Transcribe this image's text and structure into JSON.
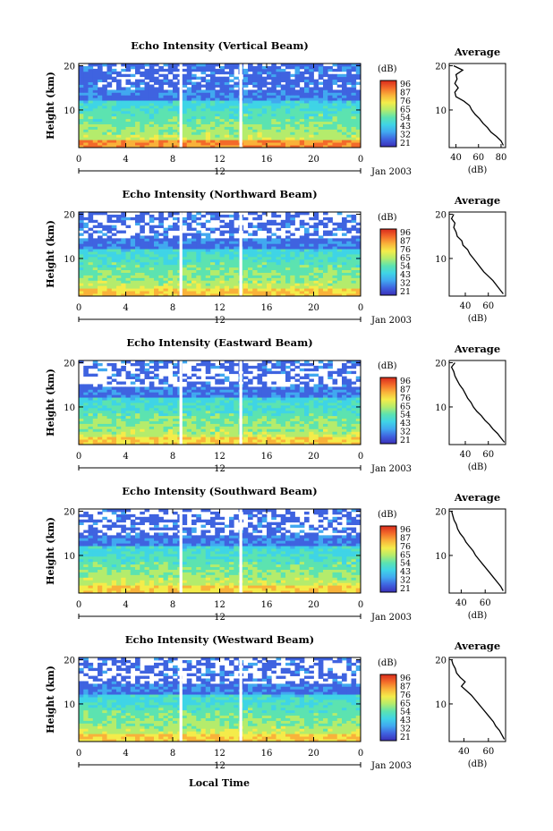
{
  "figure": {
    "xlabel": "Local Time",
    "date_label": "Jan 2003",
    "day_marker_label": "12",
    "ylabel": "Height (km)",
    "colorbar_unit": "(dB)",
    "colorbar_ticks": [
      "96",
      "87",
      "76",
      "65",
      "54",
      "43",
      "32",
      "21"
    ],
    "avg_title": "Average",
    "avg_xlabel": "(dB)"
  },
  "colorscale": [
    "#3a2fb8",
    "#3f63e0",
    "#41a8f0",
    "#3fd4e6",
    "#5ce3b0",
    "#b4ec6c",
    "#f4ec4a",
    "#f9b23a",
    "#f36a2a",
    "#d92a1c"
  ],
  "chart_data": [
    {
      "type": "heatmap",
      "title": "Echo Intensity (Vertical Beam)",
      "x_ticks": [
        "0",
        "4",
        "8",
        "12",
        "16",
        "20",
        "0"
      ],
      "x_range_hours": [
        0,
        24
      ],
      "y_ticks": [
        "20",
        "10"
      ],
      "y_range_km": [
        1.5,
        20.5
      ],
      "intensity_range_db": [
        21,
        96
      ],
      "data_gaps_hours": [
        8.7,
        13.8
      ],
      "average_profile": {
        "x_ticks": [
          "40",
          "60",
          "80"
        ],
        "x_range_db": [
          34,
          84
        ],
        "y_ticks": [
          "20",
          "10"
        ],
        "height_km": [
          20,
          19,
          18,
          17,
          16,
          15,
          14,
          13,
          12,
          11,
          10,
          9,
          8,
          7,
          6,
          5,
          4,
          3,
          2
        ],
        "db": [
          38,
          46,
          40,
          41,
          39,
          42,
          39,
          40,
          47,
          52,
          54,
          57,
          61,
          64,
          68,
          71,
          76,
          80,
          82
        ]
      }
    },
    {
      "type": "heatmap",
      "title": "Echo Intensity (Northward Beam)",
      "x_ticks": [
        "0",
        "4",
        "8",
        "12",
        "16",
        "20",
        "0"
      ],
      "x_range_hours": [
        0,
        24
      ],
      "y_ticks": [
        "20",
        "10"
      ],
      "y_range_km": [
        1.5,
        20.5
      ],
      "intensity_range_db": [
        21,
        96
      ],
      "data_gaps_hours": [
        8.7,
        13.8
      ],
      "average_profile": {
        "x_ticks": [
          "40",
          "60"
        ],
        "x_range_db": [
          26,
          75
        ],
        "y_ticks": [
          "20",
          "10"
        ],
        "height_km": [
          20,
          19,
          18,
          17,
          16,
          15,
          14,
          13,
          12,
          11,
          10,
          9,
          8,
          7,
          6,
          5,
          4,
          3,
          2
        ],
        "db": [
          30,
          28,
          31,
          30,
          32,
          33,
          37,
          38,
          42,
          44,
          47,
          50,
          53,
          56,
          60,
          64,
          67,
          70,
          73
        ]
      }
    },
    {
      "type": "heatmap",
      "title": "Echo Intensity (Eastward Beam)",
      "x_ticks": [
        "0",
        "4",
        "8",
        "12",
        "16",
        "20",
        "0"
      ],
      "x_range_hours": [
        0,
        24
      ],
      "y_ticks": [
        "20",
        "10"
      ],
      "y_range_km": [
        1.5,
        20.5
      ],
      "intensity_range_db": [
        21,
        96
      ],
      "data_gaps_hours": [
        8.7,
        13.8
      ],
      "average_profile": {
        "x_ticks": [
          "40",
          "60"
        ],
        "x_range_db": [
          26,
          75
        ],
        "y_ticks": [
          "20",
          "10"
        ],
        "height_km": [
          20,
          19,
          18,
          17,
          16,
          15,
          14,
          13,
          12,
          11,
          10,
          9,
          8,
          7,
          6,
          5,
          4,
          3,
          2
        ],
        "db": [
          31,
          28,
          30,
          31,
          33,
          35,
          38,
          40,
          42,
          45,
          47,
          50,
          54,
          57,
          61,
          64,
          68,
          71,
          74
        ]
      }
    },
    {
      "type": "heatmap",
      "title": "Echo Intensity (Southward Beam)",
      "x_ticks": [
        "0",
        "4",
        "8",
        "12",
        "16",
        "20",
        "0"
      ],
      "x_range_hours": [
        0,
        24
      ],
      "y_ticks": [
        "20",
        "10"
      ],
      "y_range_km": [
        1.5,
        20.5
      ],
      "intensity_range_db": [
        21,
        96
      ],
      "data_gaps_hours": [
        8.7,
        13.8
      ],
      "average_profile": {
        "x_ticks": [
          "40",
          "60"
        ],
        "x_range_db": [
          30,
          77
        ],
        "y_ticks": [
          "20",
          "10"
        ],
        "height_km": [
          20,
          19,
          18,
          17,
          16,
          15,
          14,
          13,
          12,
          11,
          10,
          9,
          8,
          7,
          6,
          5,
          4,
          3,
          2
        ],
        "db": [
          32,
          33,
          34,
          36,
          37,
          39,
          42,
          44,
          47,
          50,
          52,
          55,
          58,
          61,
          64,
          67,
          70,
          73,
          75
        ]
      }
    },
    {
      "type": "heatmap",
      "title": "Echo Intensity (Westward Beam)",
      "x_ticks": [
        "0",
        "4",
        "8",
        "12",
        "16",
        "20",
        "0"
      ],
      "x_range_hours": [
        0,
        24
      ],
      "y_ticks": [
        "20",
        "10"
      ],
      "y_range_km": [
        1.5,
        20.5
      ],
      "intensity_range_db": [
        21,
        96
      ],
      "data_gaps_hours": [
        8.7,
        13.8
      ],
      "average_profile": {
        "x_ticks": [
          "40",
          "60"
        ],
        "x_range_db": [
          28,
          74
        ],
        "y_ticks": [
          "20",
          "10"
        ],
        "height_km": [
          20,
          19,
          18,
          17,
          16,
          15,
          14,
          13,
          12,
          11,
          10,
          9,
          8,
          7,
          6,
          5,
          4,
          3,
          2
        ],
        "db": [
          30,
          31,
          33,
          34,
          37,
          41,
          38,
          42,
          46,
          49,
          52,
          55,
          58,
          61,
          64,
          66,
          69,
          71,
          73
        ]
      }
    }
  ]
}
